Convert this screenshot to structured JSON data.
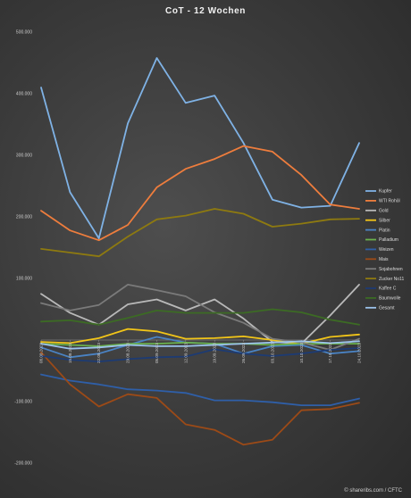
{
  "chart_data": {
    "type": "line",
    "title": "CoT - 12 Wochen",
    "x": [
      "08.08.2023",
      "15.08.2023",
      "22.08.2023",
      "29.08.2023",
      "05.09.2023",
      "12.09.2023",
      "19.09.2023",
      "26.09.2023",
      "03.10.2023",
      "10.10.2023",
      "17.10.2023",
      "24.10.2023"
    ],
    "ylim": [
      -200000,
      500000
    ],
    "yticks": [
      -200000,
      -100000,
      0,
      100000,
      200000,
      300000,
      400000,
      500000
    ],
    "ytick_labels": [
      "-200.000",
      "-100.000",
      "",
      "100.000",
      "200.000",
      "300.000",
      "400.000",
      "500.000"
    ],
    "grid": false,
    "legend_position": "right",
    "series": [
      {
        "name": "Kupfer",
        "color": "#7fb2e5",
        "values": [
          410000,
          240000,
          165000,
          352000,
          458000,
          385000,
          397000,
          320000,
          228000,
          215000,
          218000,
          320000
        ]
      },
      {
        "name": "WTI Rohöl",
        "color": "#ee7d3d",
        "values": [
          210000,
          178000,
          162000,
          187000,
          248000,
          278000,
          294000,
          315000,
          306000,
          268000,
          220000,
          213000
        ]
      },
      {
        "name": "Gold",
        "color": "#b9b9b9",
        "values": [
          75000,
          44000,
          25000,
          58000,
          66000,
          48000,
          66000,
          35000,
          -3000,
          -6000,
          40000,
          90000
        ]
      },
      {
        "name": "Silber",
        "color": "#f2c518",
        "values": [
          -3000,
          -5000,
          3000,
          18000,
          14000,
          2000,
          3000,
          6000,
          0,
          -6000,
          5000,
          9000
        ]
      },
      {
        "name": "Platin",
        "color": "#4a83c4",
        "values": [
          -12000,
          -28000,
          -22000,
          -8000,
          5000,
          -4000,
          -6000,
          -22000,
          -10000,
          -8000,
          -22000,
          -18000
        ]
      },
      {
        "name": "Palladium",
        "color": "#6ab04c",
        "values": [
          -6000,
          -8000,
          -10000,
          -6000,
          -6000,
          -4000,
          -6000,
          -6000,
          -8000,
          -6000,
          -6000,
          -6000
        ]
      },
      {
        "name": "Weizen",
        "color": "#2f5fa8",
        "values": [
          -56000,
          -66000,
          -72000,
          -80000,
          -82000,
          -86000,
          -98000,
          -98000,
          -101000,
          -106000,
          -106000,
          -95000
        ]
      },
      {
        "name": "Mais",
        "color": "#9c4a17",
        "values": [
          -20000,
          -72000,
          -108000,
          -88000,
          -94000,
          -137000,
          -146000,
          -170000,
          -162000,
          -114000,
          -112000,
          -102000
        ]
      },
      {
        "name": "Sojabohnen",
        "color": "#7a7a7a",
        "values": [
          60000,
          48000,
          57000,
          90000,
          81000,
          71000,
          45000,
          28000,
          2000,
          -4000,
          -16000,
          2000
        ]
      },
      {
        "name": "Zucker No11",
        "color": "#8e7a10",
        "values": [
          148000,
          142000,
          136000,
          168000,
          196000,
          202000,
          213000,
          205000,
          184000,
          189000,
          196000,
          197000
        ]
      },
      {
        "name": "Kaffee C",
        "color": "#1d3b73",
        "values": [
          -26000,
          -32000,
          -35000,
          -31000,
          -28000,
          -27000,
          -15000,
          -22000,
          -26000,
          -22000,
          -16000,
          -13000
        ]
      },
      {
        "name": "Baumwolle",
        "color": "#3c6b24",
        "values": [
          30000,
          32000,
          25000,
          36000,
          48000,
          44000,
          44000,
          44000,
          50000,
          45000,
          33000,
          25000
        ]
      },
      {
        "name": "Gesamt",
        "color": "#9cc3ec",
        "values": [
          -6000,
          -14000,
          -12000,
          -8000,
          -10000,
          -10000,
          -8000,
          -6000,
          -4000,
          -2000,
          -5000,
          -2000
        ]
      }
    ]
  },
  "source": "© shareribs.com / CFTC"
}
